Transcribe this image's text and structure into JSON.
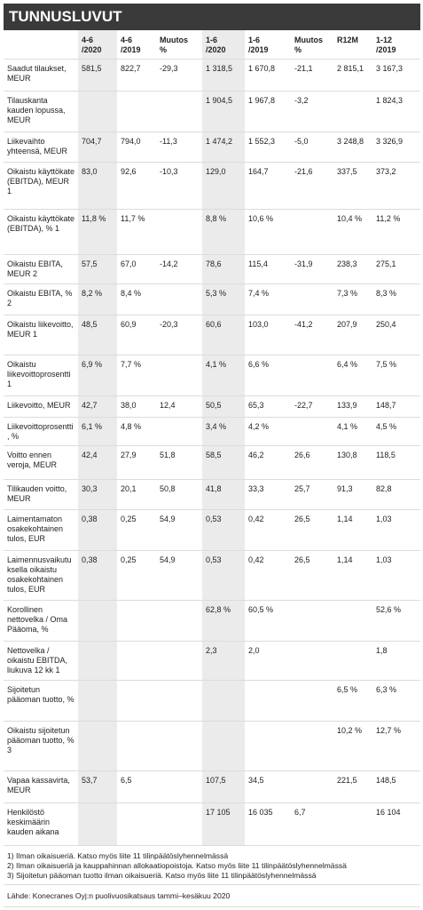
{
  "header": {
    "title": "TUNNUSLUVUT"
  },
  "table": {
    "columns": [
      "4-6\n/2020",
      "4-6\n/2019",
      "Muutos\n%",
      "1-6\n/2020",
      "1-6\n/2019",
      "Muutos\n%",
      "R12M",
      "1-12\n/2019"
    ],
    "rows": [
      [
        "Saadut tilaukset, MEUR",
        "581,5",
        "822,7",
        "-29,3",
        "1 318,5",
        "1 670,8",
        "-21,1",
        "2 815,1",
        "3 167,3"
      ],
      [
        "Tilauskanta kauden lopussa, MEUR",
        null,
        null,
        null,
        "1 904,5",
        "1 967,8",
        "-3,2",
        null,
        "1 824,3"
      ],
      [
        "Liikevaihto yhteensä, MEUR",
        "704,7",
        "794,0",
        "-11,3",
        "1 474,2",
        "1 552,3",
        "-5,0",
        "3 248,8",
        "3 326,9"
      ],
      [
        "Oikaistu käyttökate (EBITDA), MEUR 1",
        "83,0",
        "92,6",
        "-10,3",
        "129,0",
        "164,7",
        "-21,6",
        "337,5",
        "373,2"
      ],
      [
        "Oikaistu käyttökate (EBITDA), % 1",
        "11,8 %",
        "11,7 %",
        null,
        "8,8 %",
        "10,6 %",
        null,
        "10,4 %",
        "11,2 %"
      ],
      [
        "Oikaistu EBITA, MEUR 2",
        "57,5",
        "67,0",
        "-14,2",
        "78,6",
        "115,4",
        "-31,9",
        "238,3",
        "275,1"
      ],
      [
        "Oikaistu EBITA, % 2",
        "8,2 %",
        "8,4 %",
        null,
        "5,3 %",
        "7,4 %",
        null,
        "7,3 %",
        "8,3 %"
      ],
      [
        "Oikaistu liikevoitto, MEUR 1",
        "48,5",
        "60,9",
        "-20,3",
        "60,6",
        "103,0",
        "-41,2",
        "207,9",
        "250,4"
      ],
      [
        "Oikaistu liikevoittoprosentti 1",
        "6,9 %",
        "7,7 %",
        null,
        "4,1 %",
        "6,6 %",
        null,
        "6,4 %",
        "7,5 %"
      ],
      [
        "Liikevoitto, MEUR",
        "42,7",
        "38,0",
        "12,4",
        "50,5",
        "65,3",
        "-22,7",
        "133,9",
        "148,7"
      ],
      [
        "Liikevoittoprosentti, %",
        "6,1 %",
        "4,8 %",
        null,
        "3,4 %",
        "4,2 %",
        null,
        "4,1 %",
        "4,5 %"
      ],
      [
        "Voitto ennen veroja, MEUR",
        "42,4",
        "27,9",
        "51,8",
        "58,5",
        "46,2",
        "26,6",
        "130,8",
        "118,5"
      ],
      [
        "Tilikauden voitto, MEUR",
        "30,3",
        "20,1",
        "50,8",
        "41,8",
        "33,3",
        "25,7",
        "91,3",
        "82,8"
      ],
      [
        "Laimentamaton osakekohtainen tulos, EUR",
        "0,38",
        "0,25",
        "54,9",
        "0,53",
        "0,42",
        "26,5",
        "1,14",
        "1,03"
      ],
      [
        "Laimennusvaikutuksella oikaistu osakekohtainen tulos, EUR",
        "0,38",
        "0,25",
        "54,9",
        "0,53",
        "0,42",
        "26,5",
        "1,14",
        "1,03"
      ],
      [
        "Korollinen nettovelka / Oma Pääoma, %",
        null,
        null,
        null,
        "62,8 %",
        "60,5 %",
        null,
        null,
        "52,6 %"
      ],
      [
        "Nettovelka / oikaistu EBITDA, liukuva 12 kk 1",
        null,
        null,
        null,
        "2,3",
        "2,0",
        null,
        null,
        "1,8"
      ],
      [
        "Sijoitetun pääoman tuotto, %",
        null,
        null,
        null,
        null,
        null,
        null,
        "6,5 %",
        "6,3 %"
      ],
      [
        "Oikaistu sijoitetun pääoman tuotto, % 3",
        null,
        null,
        null,
        null,
        null,
        null,
        "10,2 %",
        "12,7 %"
      ],
      [
        "Vapaa kassavirta, MEUR",
        "53,7",
        "6,5",
        null,
        "107,5",
        "34,5",
        null,
        "221,5",
        "148,5"
      ],
      [
        "Henkilöstö keskimäärin kauden aikana",
        null,
        null,
        null,
        "17 105",
        "16 035",
        "6,7",
        null,
        "16 104"
      ]
    ]
  },
  "footnotes": [
    "1) Ilman oikaisueriä. Katso myös liite 11 tilinpäätöslyhennelmässä",
    "2) Ilman oikaisueriä ja kauppahinnan allokaatiopoistoja. Katso myös liite 11 tilinpäätöslyhennelmässä",
    "3) Sijoitetun pääoman tuotto ilman oikaisueriä. Katso myös liite 11 tilinpäätöslyhennelmässä"
  ],
  "source": "Lähde: Konecranes Oyj:n puolivuosikatsaus tammi–kesäkuu 2020"
}
